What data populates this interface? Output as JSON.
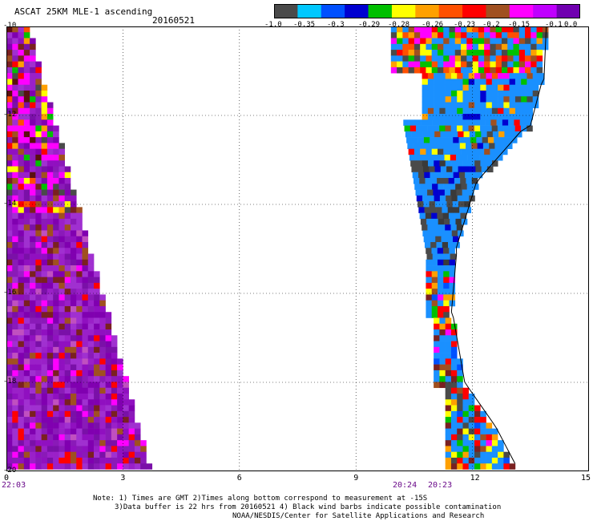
{
  "title": "ASCAT 25KM MLE-1 ascending",
  "date": "20160521",
  "colorbar": {
    "colors": [
      "#4a4a4a",
      "#00c8ff",
      "#0050ff",
      "#0000d0",
      "#00c000",
      "#ffff00",
      "#ffa000",
      "#ff5000",
      "#ff0000",
      "#a05020",
      "#ff00ff",
      "#c000ff",
      "#7000b0"
    ],
    "labels": [
      "-1.0",
      "-0.35",
      "-0.3",
      "-0.29",
      "-0.28",
      "-0.26",
      "-0.23",
      "-0.2",
      "-0.15",
      "-0.1",
      "0.0"
    ]
  },
  "axes": {
    "x_ticks": [
      "0",
      "3",
      "6",
      "9",
      "12",
      "15"
    ],
    "y_ticks": [
      "-10",
      "-12",
      "-14",
      "-16",
      "-18",
      "-20"
    ],
    "x_range": [
      0,
      15
    ],
    "y_range": [
      -10,
      -20
    ],
    "grid": true
  },
  "time_labels": {
    "left": "22:03",
    "mid1": "20:24",
    "mid2": "20:23"
  },
  "notes": [
    "Note: 1) Times are GMT 2)Times along bottom correspond to measurement at -15S",
    "3)Data buffer is 22 hrs from 20160521 4) Black wind barbs indicate possible contamination",
    "NOAA/NESDIS/Center for Satellite Applications and Research"
  ]
}
